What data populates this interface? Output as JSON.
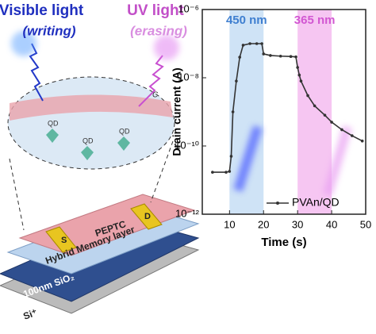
{
  "chart_data": {
    "type": "line",
    "x_label": "Time (s)",
    "y_label": "Drain current (A)",
    "xlim": [
      2,
      50
    ],
    "xticks": [
      10,
      20,
      30,
      40,
      50
    ],
    "ylim": [
      1e-12,
      1e-06
    ],
    "log_y": true,
    "yticks": [
      {
        "value": 1e-12,
        "label": "10⁻¹²"
      },
      {
        "value": 1e-10,
        "label": "10⁻¹⁰"
      },
      {
        "value": 1e-08,
        "label": "10⁻⁸"
      },
      {
        "value": 1e-06,
        "label": "10⁻⁶"
      }
    ],
    "bands": [
      {
        "label": "450 nm",
        "xlim": [
          10,
          20
        ],
        "color": "#cfe3f6",
        "text_color": "#3f7fd0"
      },
      {
        "label": "365 nm",
        "xlim": [
          30,
          40
        ],
        "color": "#f6c6f2",
        "text_color": "#d257d2"
      }
    ],
    "legend": "lower right",
    "series": [
      {
        "name": "PVAn/QD",
        "color": "#333333",
        "x": [
          5,
          9,
          10,
          10.5,
          11,
          12,
          13,
          14,
          16,
          18,
          19.5,
          20,
          22,
          25,
          28,
          29.5,
          30,
          30.5,
          31,
          33,
          35,
          38,
          40,
          43,
          46,
          49
        ],
        "values": [
          1.7e-11,
          1.7e-11,
          1.8e-11,
          5e-11,
          1e-09,
          8e-09,
          4e-08,
          9e-08,
          1e-07,
          1e-07,
          1e-07,
          5e-08,
          4.5e-08,
          4.3e-08,
          4.2e-08,
          4.1e-08,
          2e-08,
          1.2e-08,
          8e-09,
          3e-09,
          1.5e-09,
          8e-10,
          5e-10,
          3e-10,
          2e-10,
          1.4e-10
        ]
      }
    ]
  },
  "diagram": {
    "light_labels": [
      "Visible light",
      "(writing)",
      "UV light",
      "(erasing)"
    ],
    "zoom_labels": [
      "C",
      "QD",
      "QD",
      "QD"
    ],
    "device_labels": [
      "S",
      "D",
      "PEPTC",
      "Hybrid Memory layer",
      "100nm SiO₂",
      "Si⁺"
    ]
  }
}
